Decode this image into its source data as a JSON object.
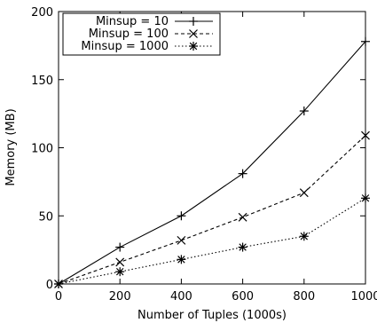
{
  "chart_data": {
    "type": "line",
    "title": "",
    "xlabel": "Number of Tuples (1000s)",
    "ylabel": "Memory (MB)",
    "xlim": [
      0,
      1000
    ],
    "ylim": [
      0,
      200
    ],
    "xticks": [
      0,
      200,
      400,
      600,
      800,
      1000
    ],
    "yticks": [
      0,
      50,
      100,
      150,
      200
    ],
    "grid": false,
    "legend_position": "top-left",
    "x": [
      0,
      200,
      400,
      600,
      800,
      1000
    ],
    "series": [
      {
        "name": "Minsup = 10",
        "values": [
          0,
          27,
          50,
          81,
          127,
          178
        ],
        "line_style": "solid",
        "marker": "plus",
        "color": "#000000"
      },
      {
        "name": "Minsup = 100",
        "values": [
          0,
          16,
          32,
          49,
          67,
          109
        ],
        "line_style": "dashed",
        "marker": "cross",
        "color": "#000000"
      },
      {
        "name": "Minsup = 1000",
        "values": [
          0,
          9,
          18,
          27,
          35,
          63
        ],
        "line_style": "dotted",
        "marker": "star",
        "color": "#000000"
      }
    ]
  }
}
